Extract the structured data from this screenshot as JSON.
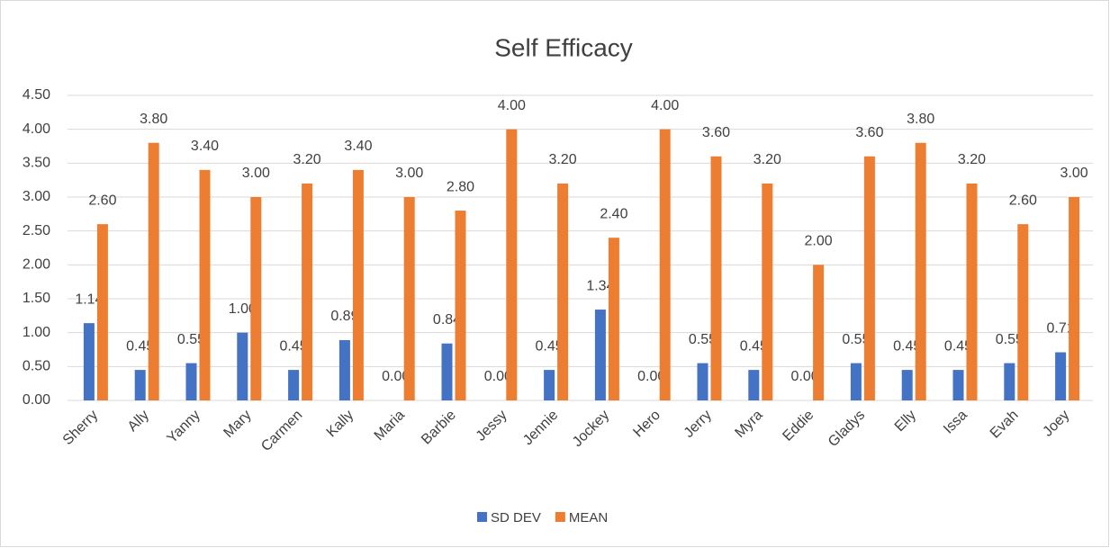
{
  "chart_data": {
    "type": "bar",
    "title": "Self Efficacy",
    "categories": [
      "Sherry",
      "Ally",
      "Yanny",
      "Mary",
      "Carmen",
      "Kally",
      "Maria",
      "Barbie",
      "Jessy",
      "Jennie",
      "Jockey",
      "Hero",
      "Jerry",
      "Myra",
      "Eddie",
      "Gladys",
      "Elly",
      "Issa",
      "Evah",
      "Joey"
    ],
    "series": [
      {
        "name": "SD DEV",
        "color": "#4472c4",
        "values": [
          1.14,
          0.45,
          0.55,
          1.0,
          0.45,
          0.89,
          0,
          0.84,
          0,
          0.45,
          1.34,
          0,
          0.55,
          0.45,
          0,
          0.55,
          0.45,
          0.45,
          0.55,
          0.71
        ],
        "value_labels": [
          "1.14",
          "0.45",
          "0.55",
          "1.00",
          "0.45",
          "0.89",
          "0.00",
          "0.84",
          "0.00",
          "0.45",
          "1.34",
          "0.00",
          "0.55",
          "0.45",
          "0.00",
          "0.55",
          "0.45",
          "0.45",
          "0.55",
          "0.71"
        ]
      },
      {
        "name": "MEAN",
        "color": "#ed7d31",
        "values": [
          2.6,
          3.8,
          3.4,
          3.0,
          3.2,
          3.4,
          3.0,
          2.8,
          4.0,
          3.2,
          2.4,
          4.0,
          3.6,
          3.2,
          2.0,
          3.6,
          3.8,
          3.2,
          2.6,
          3.0
        ],
        "value_labels": [
          "2.60",
          "3.80",
          "3.40",
          "3.00",
          "3.20",
          "3.40",
          "3.00",
          "2.80",
          "4.00",
          "3.20",
          "2.40",
          "4.00",
          "3.60",
          "3.20",
          "2.00",
          "3.60",
          "3.80",
          "3.20",
          "2.60",
          "3.00"
        ]
      }
    ],
    "ylim": [
      0,
      4.5
    ],
    "yticks": [
      {
        "value": 0,
        "label": "0.00"
      },
      {
        "value": 0.5,
        "label": "0.50"
      },
      {
        "value": 1,
        "label": "1.00"
      },
      {
        "value": 1.5,
        "label": "1.50"
      },
      {
        "value": 2,
        "label": "2.00"
      },
      {
        "value": 2.5,
        "label": "2.50"
      },
      {
        "value": 3,
        "label": "3.00"
      },
      {
        "value": 3.5,
        "label": "3.50"
      },
      {
        "value": 4,
        "label": "4.00"
      },
      {
        "value": 4.5,
        "label": "4.50"
      }
    ],
    "grid": true,
    "legend": "bottom"
  }
}
